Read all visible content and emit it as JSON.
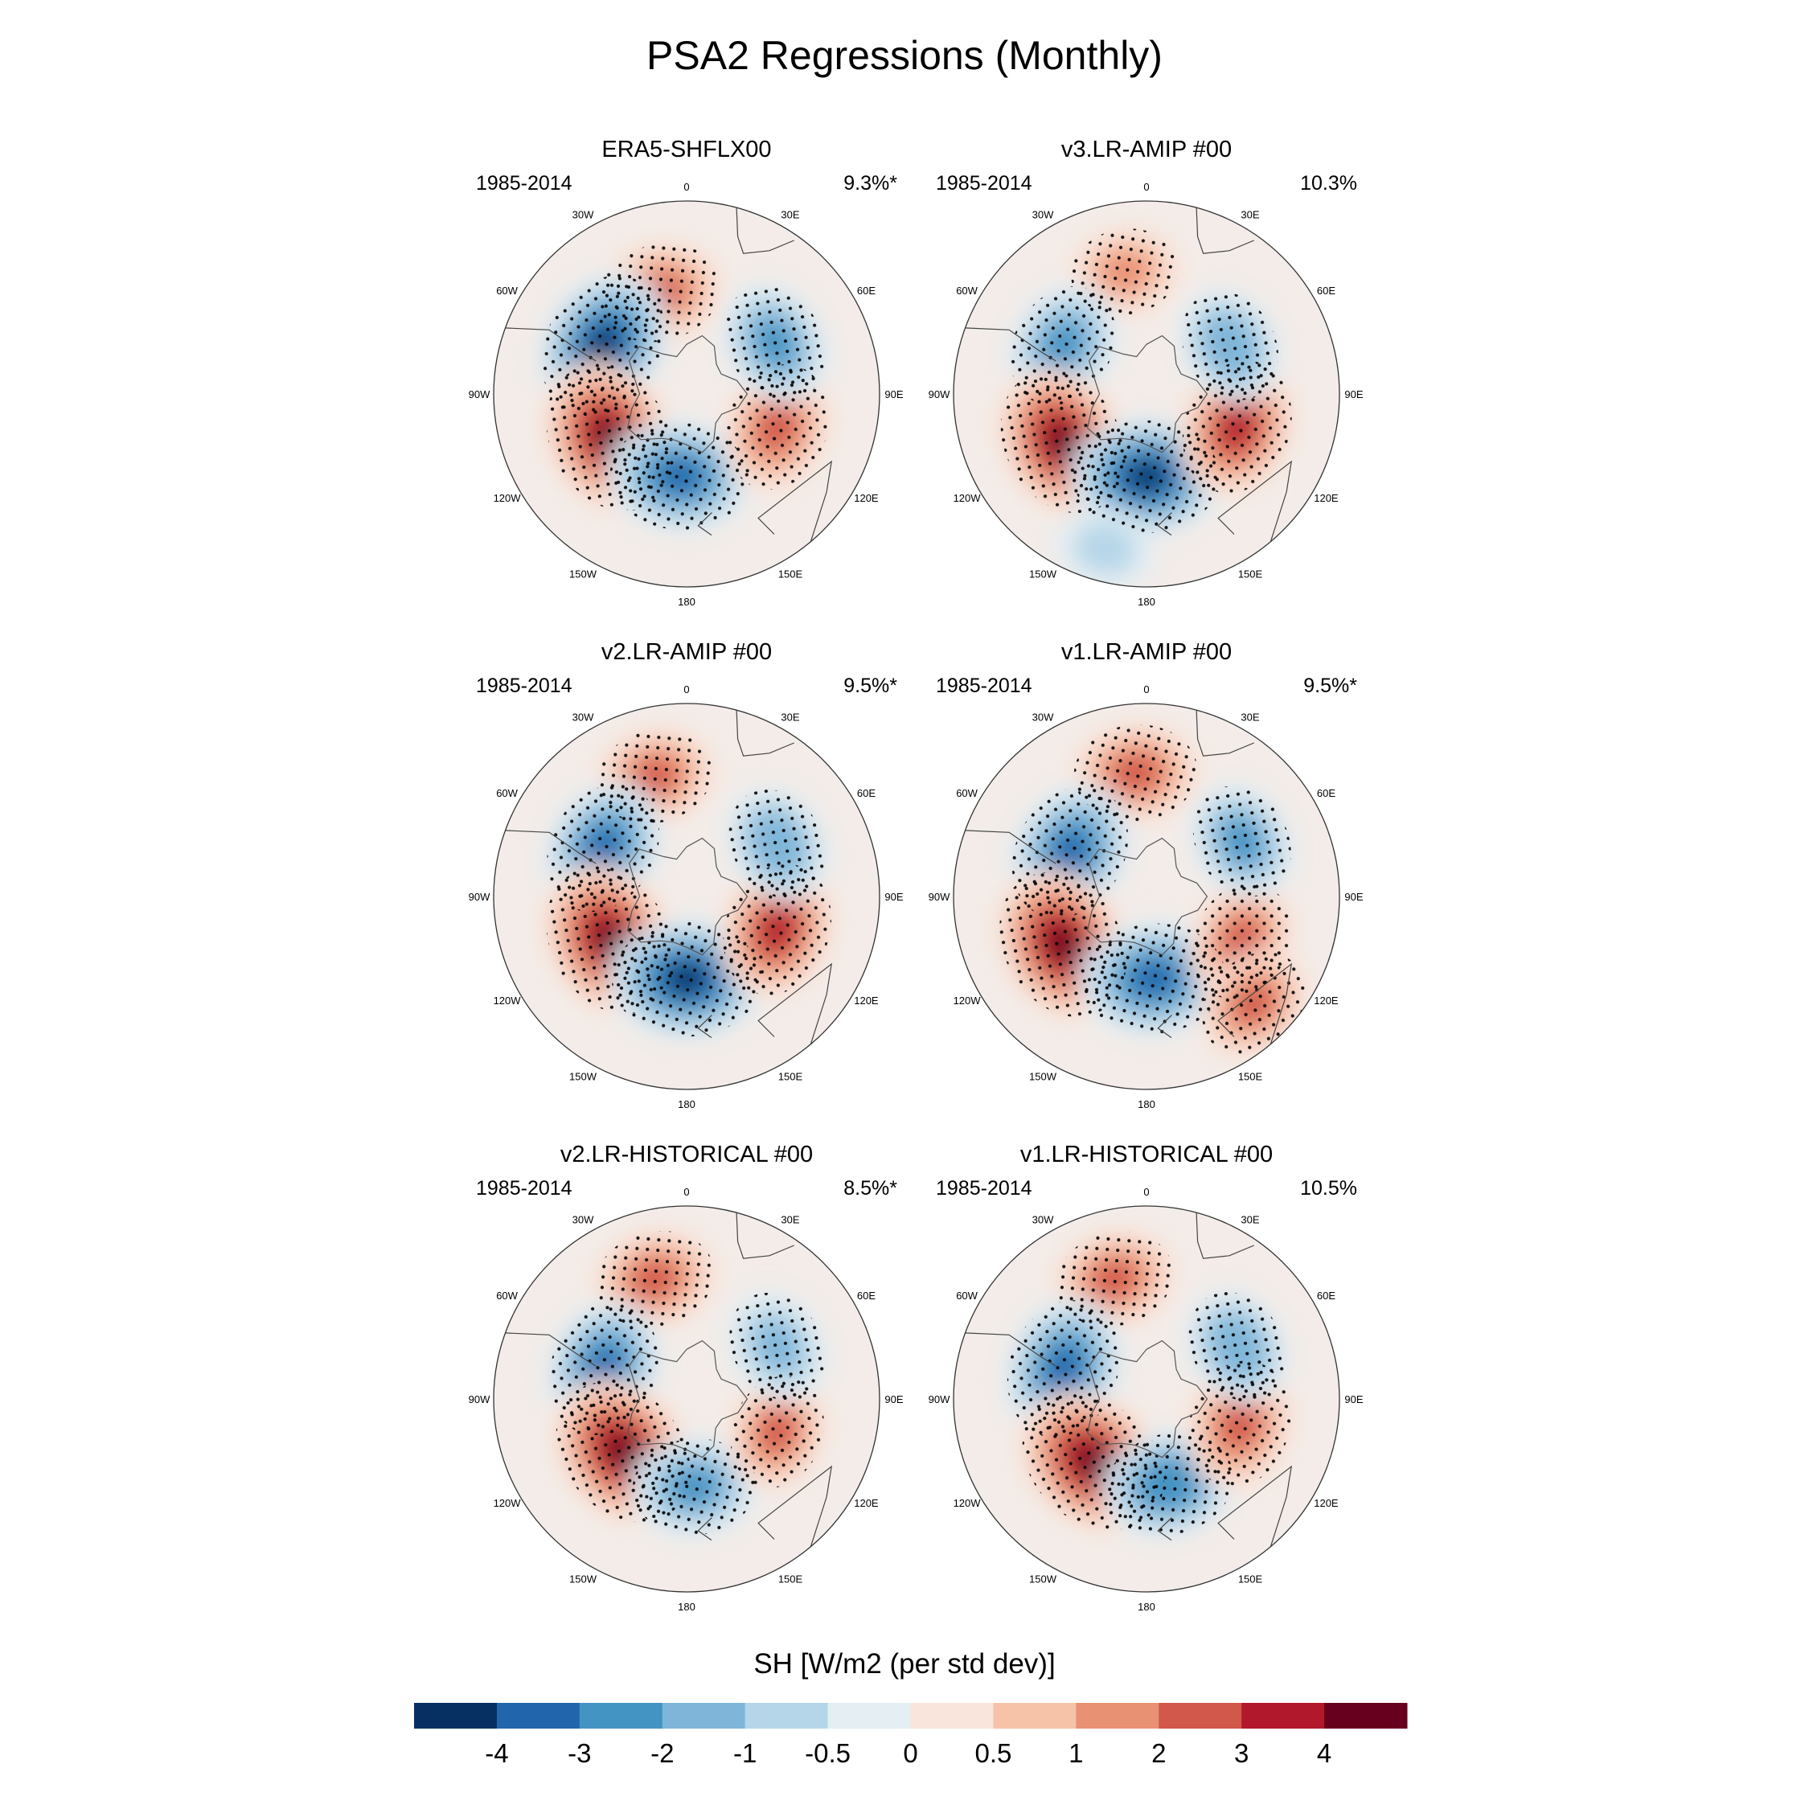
{
  "figure": {
    "title": "PSA2 Regressions (Monthly)"
  },
  "lon_labels": [
    "0",
    "30E",
    "60E",
    "90E",
    "120E",
    "150E",
    "180",
    "150W",
    "120W",
    "90W",
    "60W",
    "30W"
  ],
  "panels": [
    {
      "title": "ERA5-SHFLX00",
      "years": "1985-2014",
      "pct": "9.3%*",
      "anomalies": [
        {
          "lon": 345,
          "lat": -52,
          "val": 2.6
        },
        {
          "lon": 300,
          "lat": -55,
          "val": -4.2
        },
        {
          "lon": 240,
          "lat": -58,
          "val": 4.6
        },
        {
          "lon": 185,
          "lat": -60,
          "val": -3.6
        },
        {
          "lon": 110,
          "lat": -55,
          "val": 2.9
        },
        {
          "lon": 60,
          "lat": -53,
          "val": -2.4
        }
      ]
    },
    {
      "title": "v3.LR-AMIP  #00",
      "years": "1985-2014",
      "pct": "10.3%",
      "anomalies": [
        {
          "lon": 350,
          "lat": -45,
          "val": 1.6
        },
        {
          "lon": 300,
          "lat": -55,
          "val": -2.7
        },
        {
          "lon": 240,
          "lat": -55,
          "val": 4.3
        },
        {
          "lon": 180,
          "lat": -60,
          "val": -4.1
        },
        {
          "lon": 110,
          "lat": -55,
          "val": 3.4
        },
        {
          "lon": 60,
          "lat": -55,
          "val": -2.0
        },
        {
          "lon": 195,
          "lat": -32,
          "val": -0.9
        }
      ]
    },
    {
      "title": "v2.LR-AMIP  #00",
      "years": "1985-2014",
      "pct": "9.5%*",
      "anomalies": [
        {
          "lon": 345,
          "lat": -45,
          "val": 2.2
        },
        {
          "lon": 300,
          "lat": -55,
          "val": -3.3
        },
        {
          "lon": 240,
          "lat": -58,
          "val": 4.6
        },
        {
          "lon": 180,
          "lat": -60,
          "val": -4.3
        },
        {
          "lon": 110,
          "lat": -55,
          "val": 3.3
        },
        {
          "lon": 60,
          "lat": -52,
          "val": -2.0
        }
      ]
    },
    {
      "title": "v1.LR-AMIP  #00",
      "years": "1985-2014",
      "pct": "9.5%*",
      "anomalies": [
        {
          "lon": 355,
          "lat": -45,
          "val": 2.6
        },
        {
          "lon": 300,
          "lat": -58,
          "val": -3.6
        },
        {
          "lon": 240,
          "lat": -55,
          "val": 4.5
        },
        {
          "lon": 175,
          "lat": -60,
          "val": -3.9
        },
        {
          "lon": 115,
          "lat": -52,
          "val": 2.4
        },
        {
          "lon": 60,
          "lat": -50,
          "val": -2.1
        },
        {
          "lon": 135,
          "lat": -35,
          "val": 2.0
        }
      ]
    },
    {
      "title": "v2.LR-HISTORICAL  #00",
      "years": "1985-2014",
      "pct": "8.5%*",
      "anomalies": [
        {
          "lon": 345,
          "lat": -45,
          "val": 2.4
        },
        {
          "lon": 290,
          "lat": -58,
          "val": -3.4
        },
        {
          "lon": 230,
          "lat": -60,
          "val": 4.6
        },
        {
          "lon": 175,
          "lat": -58,
          "val": -2.6
        },
        {
          "lon": 110,
          "lat": -55,
          "val": 2.0
        },
        {
          "lon": 60,
          "lat": -52,
          "val": -1.9
        }
      ]
    },
    {
      "title": "v1.LR-HISTORICAL  #00",
      "years": "1985-2014",
      "pct": "10.5%",
      "anomalies": [
        {
          "lon": 345,
          "lat": -45,
          "val": 2.3
        },
        {
          "lon": 290,
          "lat": -58,
          "val": -3.7
        },
        {
          "lon": 220,
          "lat": -60,
          "val": 4.7
        },
        {
          "lon": 165,
          "lat": -58,
          "val": -3.0
        },
        {
          "lon": 105,
          "lat": -55,
          "val": 2.9
        },
        {
          "lon": 60,
          "lat": -52,
          "val": -2.0
        }
      ]
    }
  ],
  "colorbar": {
    "label": "SH [W/m2 (per std dev)]",
    "ticks": [
      "-4",
      "-3",
      "-2",
      "-1",
      "-0.5",
      "0",
      "0.5",
      "1",
      "2",
      "3",
      "4"
    ],
    "levels": [
      -4,
      -3,
      -2,
      -1,
      -0.5,
      0,
      0.5,
      1,
      2,
      3,
      4
    ],
    "colors": [
      "#053061",
      "#2166ac",
      "#4393c3",
      "#7fb5d8",
      "#b5d6e8",
      "#e4eef3",
      "#f9e5dc",
      "#f6c3a8",
      "#e99173",
      "#d1584a",
      "#b2182b",
      "#67001f"
    ]
  }
}
